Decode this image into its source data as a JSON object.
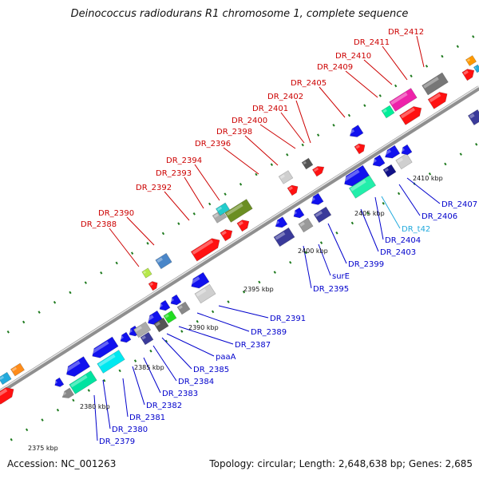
{
  "title": "Deinococcus radiodurans R1 chromosome 1, complete sequence",
  "footer": {
    "accession": "Accession: NC_001263",
    "topology": "Topology: circular; Length: 2,648,638 bp; Genes: 2,685"
  },
  "colors": {
    "forward_label": "#cc0000",
    "reverse_label": "#0000cc",
    "rna_label": "#22aadd",
    "backbone": "#9a9a9a",
    "tick": "#1e7a1e"
  },
  "kbp_labels": [
    "2375 kbp",
    "2380 kbp",
    "2385 kbp",
    "2390 kbp",
    "2395 kbp",
    "2400 kbp",
    "2405 kbp",
    "2410 kbp"
  ],
  "forward_genes": [
    "DR_2388",
    "DR_2390",
    "DR_2392",
    "DR_2393",
    "DR_2394",
    "DR_2396",
    "DR_2398",
    "DR_2400",
    "DR_2401",
    "DR_2402",
    "DR_2405",
    "DR_2409",
    "DR_2410",
    "DR_2411",
    "DR_2412"
  ],
  "reverse_genes": [
    "DR_2379",
    "DR_2380",
    "DR_2381",
    "DR_2382",
    "DR_2383",
    "DR_2384",
    "DR_2385",
    "paaA",
    "DR_2387",
    "DR_2389",
    "DR_2391",
    "DR_2395",
    "surE",
    "DR_2399",
    "DR_2403",
    "DR_2404",
    "DR_t42",
    "DR_2406",
    "DR_2407"
  ]
}
